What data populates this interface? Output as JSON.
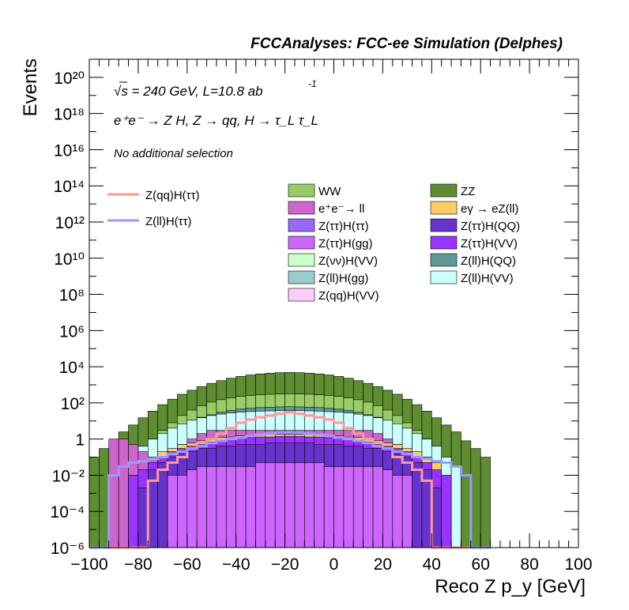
{
  "header": {
    "title": "FCCAnalyses: FCC-ee Simulation (Delphes)"
  },
  "annotations": {
    "energy_prefix": "√s = 240 GeV, L=10.8 ab",
    "energy_exponent": "-1",
    "process": "e⁺e⁻ → Z H, Z → qq, H → τ_L τ_L",
    "selection": "No additional selection"
  },
  "chart_data": {
    "type": "area",
    "title": "FCCAnalyses: FCC-ee Simulation (Delphes)",
    "xlabel": "Reco Z p_y [GeV]",
    "ylabel": "Events",
    "xlim": [
      -100,
      100
    ],
    "ylim": [
      1e-06,
      1e+21
    ],
    "yscale": "log",
    "x_ticks": [
      "−100",
      "−80",
      "−60",
      "−40",
      "−20",
      "0",
      "20",
      "40",
      "60",
      "80",
      "100"
    ],
    "y_ticks": [
      "10⁻⁶",
      "10⁻⁴",
      "10⁻²",
      "1",
      "10²",
      "10⁴",
      "10⁶",
      "10⁸",
      "10¹⁰",
      "10¹²",
      "10¹⁴",
      "10¹⁶",
      "10¹⁸",
      "10²⁰"
    ],
    "bin_width": 4,
    "stack_envelopes": [
      {
        "name": "ZZ",
        "color": "#5f8d32",
        "values": [
          0.1,
          0.3,
          0.8,
          2.5,
          6,
          15,
          35,
          80,
          160,
          300,
          500,
          800,
          1200,
          1700,
          2300,
          2900,
          3500,
          4000,
          4400,
          4700,
          4800,
          4700,
          4400,
          4000,
          3500,
          2900,
          2300,
          1700,
          1200,
          800,
          500,
          300,
          160,
          80,
          35,
          15,
          6,
          2.5,
          0.8,
          0.3,
          0.1
        ]
      },
      {
        "name": "WW",
        "color": "#99cc66",
        "values": [
          1e-06,
          1e-06,
          1e-06,
          1e-06,
          1e-06,
          1e-06,
          1,
          3,
          8,
          20,
          40,
          70,
          110,
          150,
          190,
          230,
          260,
          280,
          300,
          310,
          320,
          310,
          300,
          280,
          260,
          230,
          190,
          150,
          110,
          70,
          40,
          20,
          8,
          3,
          1,
          1e-06,
          1e-06,
          1e-06,
          1e-06,
          1e-06,
          1e-06
        ]
      },
      {
        "name": "Z(ll)H(QQ)",
        "color": "#5f9999",
        "values": [
          1e-06,
          1e-06,
          1e-06,
          1e-06,
          1e-06,
          0.2,
          0.6,
          1.5,
          3,
          6,
          10,
          16,
          22,
          30,
          38,
          45,
          50,
          55,
          58,
          60,
          61,
          60,
          58,
          55,
          50,
          45,
          38,
          30,
          22,
          16,
          10,
          6,
          3,
          1.5,
          0.6,
          0.2,
          1e-06,
          1e-06,
          1e-06,
          1e-06,
          1e-06
        ]
      },
      {
        "name": "Z(ll)H(VV)",
        "color": "#ccffff",
        "values": [
          1e-06,
          1e-06,
          1e-06,
          0.03,
          0.1,
          0.4,
          1,
          2,
          4,
          7,
          11,
          15,
          20,
          24,
          28,
          31,
          33,
          35,
          36,
          37,
          37,
          37,
          36,
          35,
          33,
          31,
          28,
          24,
          20,
          15,
          11,
          7,
          4,
          2,
          1,
          0.4,
          0.1,
          0.03,
          1e-06,
          1e-06,
          1e-06
        ]
      },
      {
        "name": "e+e- → ll",
        "color": "#cc66cc",
        "values": [
          1e-06,
          1e-06,
          1,
          1,
          0.5,
          0.2,
          0.1,
          0.1,
          0.2,
          0.5,
          1,
          2,
          3,
          3,
          3,
          3,
          3,
          3,
          3,
          3,
          3,
          3,
          3,
          3,
          3,
          3,
          3,
          3,
          3,
          2,
          1,
          0.5,
          0.2,
          0.1,
          0.1,
          1e-06,
          1e-06,
          1e-06,
          1e-06,
          1e-06,
          1e-06
        ]
      },
      {
        "name": "eγ → eZ(ll)",
        "color": "#ffcc66",
        "values": [
          1e-06,
          1e-06,
          1e-06,
          1e-06,
          1e-06,
          1e-06,
          1e-06,
          0.2,
          0.3,
          0.5,
          0.6,
          0.8,
          1,
          1.2,
          1.3,
          1.5,
          1.6,
          1.7,
          1.8,
          1.8,
          1.8,
          1.8,
          1.8,
          1.7,
          1.6,
          1.5,
          1.3,
          1.2,
          1,
          0.8,
          0.6,
          0.5,
          0.3,
          0.2,
          0.1,
          0.05,
          1e-06,
          1e-06,
          1e-06,
          1e-06,
          1e-06
        ]
      },
      {
        "name": "Z(ττ)H(VV)",
        "color": "#9933ff",
        "values": [
          1e-06,
          1e-06,
          1e-06,
          1e-06,
          0.01,
          0.02,
          0.05,
          0.1,
          0.2,
          0.3,
          0.4,
          0.5,
          0.7,
          0.8,
          1,
          1.1,
          1.2,
          1.3,
          1.3,
          1.4,
          1.4,
          1.4,
          1.3,
          1.3,
          1.2,
          1.1,
          1,
          0.8,
          0.7,
          0.5,
          0.4,
          0.3,
          0.2,
          0.1,
          0.05,
          0.02,
          0.01,
          1e-06,
          1e-06,
          1e-06,
          1e-06
        ]
      },
      {
        "name": "Z(ττ)H(QQ)",
        "color": "#6633cc",
        "values": [
          1e-06,
          1e-06,
          1e-06,
          1e-06,
          1e-06,
          0.002,
          0.02,
          0.05,
          0.1,
          0.15,
          0.2,
          0.3,
          0.3,
          0.4,
          0.4,
          0.5,
          0.5,
          0.5,
          0.6,
          0.6,
          0.6,
          0.6,
          0.6,
          0.5,
          0.5,
          0.5,
          0.4,
          0.4,
          0.3,
          0.3,
          0.2,
          0.15,
          0.1,
          0.05,
          0.02,
          0.002,
          1e-06,
          1e-06,
          1e-06,
          1e-06,
          1e-06
        ]
      },
      {
        "name": "Z(ττ)H(gg)",
        "color": "#cc66ff",
        "values": [
          1e-06,
          1e-06,
          1e-06,
          1e-06,
          1e-06,
          1e-06,
          1e-06,
          1e-06,
          0.01,
          0.01,
          0.02,
          0.03,
          0.03,
          0.03,
          0.03,
          0.03,
          0.03,
          0.05,
          0.05,
          0.05,
          0.05,
          0.05,
          0.05,
          0.05,
          0.03,
          0.03,
          0.03,
          0.03,
          0.03,
          0.03,
          0.02,
          0.01,
          0.01,
          1e-06,
          1e-06,
          1e-06,
          1e-06,
          1e-06,
          1e-06,
          1e-06,
          1e-06
        ]
      }
    ],
    "signal_lines": [
      {
        "name": "Z(qq)H(ττ)",
        "color": "#ff9999",
        "values": [
          1e-06,
          1e-06,
          1e-06,
          1e-06,
          1e-06,
          1e-06,
          0.005,
          0.02,
          0.05,
          0.1,
          0.3,
          0.6,
          1,
          2,
          4,
          8,
          12,
          16,
          20,
          25,
          30,
          25,
          20,
          16,
          12,
          8,
          4,
          2,
          1,
          0.6,
          0.3,
          0.1,
          0.05,
          0.02,
          0.005,
          1e-06,
          1e-06,
          1e-06,
          1e-06,
          1e-06,
          1e-06
        ]
      },
      {
        "name": "Z(ll)H(ττ)",
        "color": "#9999ff",
        "values": [
          1e-06,
          1e-06,
          0.01,
          0.03,
          0.05,
          0.06,
          0.08,
          0.1,
          0.15,
          0.2,
          0.3,
          0.4,
          0.6,
          0.8,
          1,
          1.2,
          1.5,
          1.8,
          2,
          2.2,
          2.3,
          2.2,
          2,
          1.8,
          1.5,
          1.2,
          1,
          0.8,
          0.6,
          0.4,
          0.3,
          0.2,
          0.15,
          0.1,
          0.08,
          0.06,
          0.05,
          0.03,
          0.01,
          1e-06,
          1e-06
        ]
      }
    ],
    "legend": {
      "placement": "top-right",
      "columns": [
        [
          {
            "label": "WW",
            "color": "#99cc66"
          },
          {
            "label": "e⁺e⁻→ ll",
            "color": "#cc66cc"
          },
          {
            "label": "Z(ττ)H(ττ)",
            "color": "#9966ff"
          },
          {
            "label": "Z(ττ)H(gg)",
            "color": "#cc66ff"
          },
          {
            "label": "Z(νν)H(VV)",
            "color": "#ccffcc"
          },
          {
            "label": "Z(ll)H(gg)",
            "color": "#99cccc"
          },
          {
            "label": "Z(qq)H(VV)",
            "color": "#ffccff"
          }
        ],
        [
          {
            "label": "ZZ",
            "color": "#5f8d32"
          },
          {
            "label": "eγ → eZ(ll)",
            "color": "#ffcc66"
          },
          {
            "label": "Z(ττ)H(QQ)",
            "color": "#6633cc"
          },
          {
            "label": "Z(ττ)H(VV)",
            "color": "#9933ff"
          },
          {
            "label": "Z(ll)H(QQ)",
            "color": "#5f9999"
          },
          {
            "label": "Z(ll)H(VV)",
            "color": "#ccffff"
          }
        ]
      ],
      "lines": [
        {
          "label": "Z(qq)H(ττ)",
          "color": "#ff9999"
        },
        {
          "label": "Z(ll)H(ττ)",
          "color": "#9999ff"
        }
      ]
    }
  }
}
